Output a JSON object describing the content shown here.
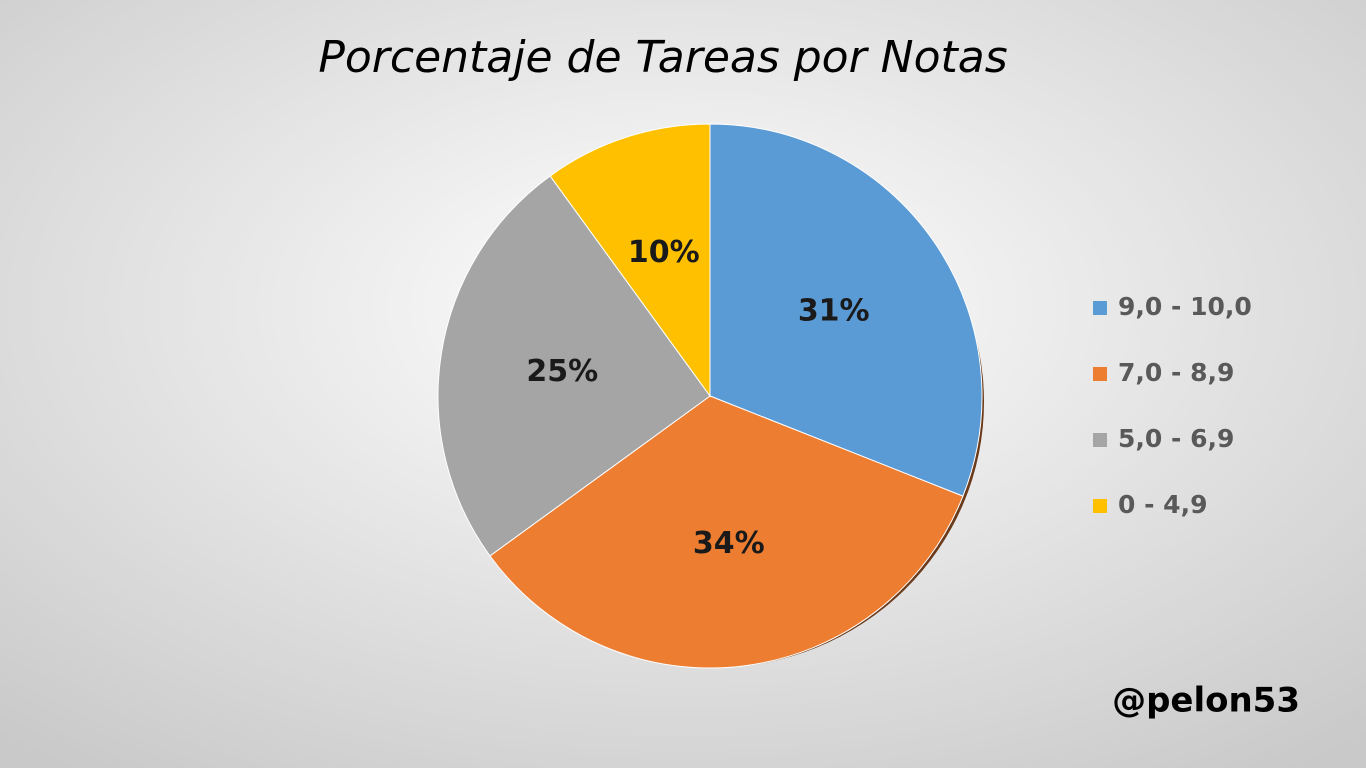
{
  "chart_data": {
    "type": "pie",
    "title": "Porcentaje de Tareas por Notas",
    "categories": [
      "9,0 - 10,0",
      "7,0 - 8,9",
      "5,0 - 6,9",
      "0 - 4,9"
    ],
    "values": [
      31,
      34,
      25,
      10
    ],
    "value_labels": [
      "31%",
      "34%",
      "25%",
      "10%"
    ],
    "colors": [
      "#5b9bd5",
      "#ed7d31",
      "#a5a5a5",
      "#ffc000"
    ],
    "legend": "right",
    "annotation": "@pelon53"
  }
}
